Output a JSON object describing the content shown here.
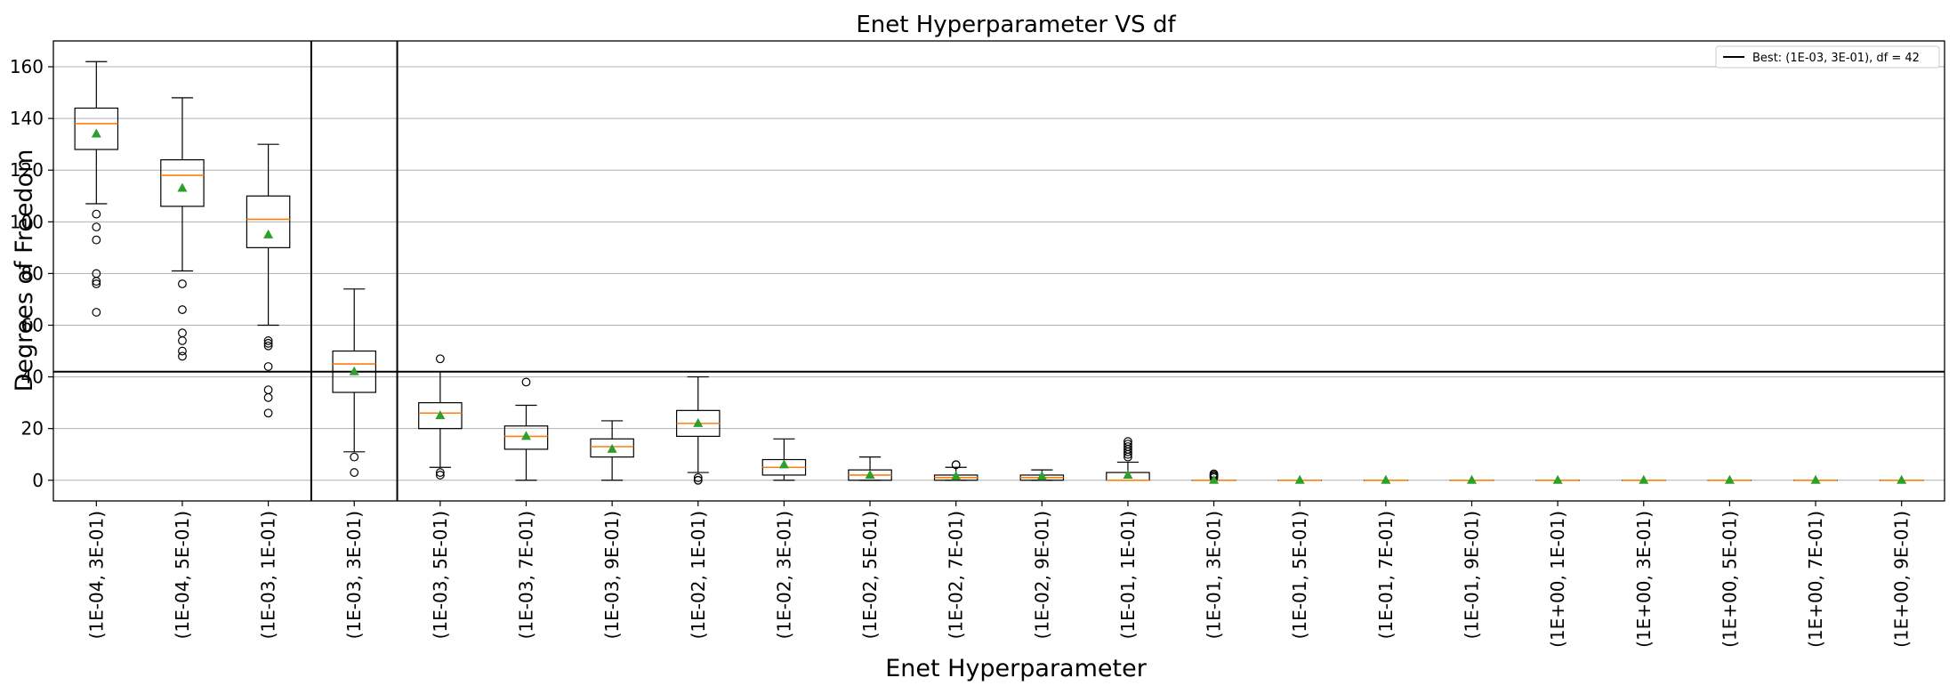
{
  "chart_data": {
    "type": "box",
    "title": "Enet Hyperparameter VS df",
    "xlabel": "Enet Hyperparameter",
    "ylabel": "Degrees of Freedom",
    "ylim": [
      -8,
      170
    ],
    "yticks": [
      0,
      20,
      40,
      60,
      80,
      100,
      120,
      140,
      160
    ],
    "grid": "y",
    "legend": {
      "position": "top-right",
      "entries": [
        "Best: (1E-03, 3E-01), df = 42"
      ]
    },
    "best": {
      "category": "(1E-03, 3E-01)",
      "df": 42
    },
    "categories": [
      "(1E-04, 3E-01)",
      "(1E-04, 5E-01)",
      "(1E-03, 1E-01)",
      "(1E-03, 3E-01)",
      "(1E-03, 5E-01)",
      "(1E-03, 7E-01)",
      "(1E-03, 9E-01)",
      "(1E-02, 1E-01)",
      "(1E-02, 3E-01)",
      "(1E-02, 5E-01)",
      "(1E-02, 7E-01)",
      "(1E-02, 9E-01)",
      "(1E-01, 1E-01)",
      "(1E-01, 3E-01)",
      "(1E-01, 5E-01)",
      "(1E-01, 7E-01)",
      "(1E-01, 9E-01)",
      "(1E+00, 1E-01)",
      "(1E+00, 3E-01)",
      "(1E+00, 5E-01)",
      "(1E+00, 7E-01)",
      "(1E+00, 9E-01)"
    ],
    "boxes": [
      {
        "whislo": 107,
        "q1": 128,
        "med": 138,
        "q3": 144,
        "whishi": 162,
        "mean": 134,
        "fliers": [
          103,
          98,
          93,
          80,
          77,
          76,
          65
        ]
      },
      {
        "whislo": 81,
        "q1": 106,
        "med": 118,
        "q3": 124,
        "whishi": 148,
        "mean": 113,
        "fliers": [
          76,
          66,
          57,
          54,
          50,
          48
        ]
      },
      {
        "whislo": 60,
        "q1": 90,
        "med": 101,
        "q3": 110,
        "whishi": 130,
        "mean": 95,
        "fliers": [
          54,
          53,
          52,
          44,
          35,
          32,
          26
        ]
      },
      {
        "whislo": 11,
        "q1": 34,
        "med": 45,
        "q3": 50,
        "whishi": 74,
        "mean": 42,
        "fliers": [
          9,
          3
        ]
      },
      {
        "whislo": 5,
        "q1": 20,
        "med": 26,
        "q3": 30,
        "whishi": 42,
        "mean": 25,
        "fliers": [
          47,
          3,
          2
        ]
      },
      {
        "whislo": 0,
        "q1": 12,
        "med": 17,
        "q3": 21,
        "whishi": 29,
        "mean": 17,
        "fliers": [
          38
        ]
      },
      {
        "whislo": 0,
        "q1": 9,
        "med": 13,
        "q3": 16,
        "whishi": 23,
        "mean": 12,
        "fliers": []
      },
      {
        "whislo": 3,
        "q1": 17,
        "med": 22,
        "q3": 27,
        "whishi": 40,
        "mean": 22,
        "fliers": [
          1,
          0,
          0
        ]
      },
      {
        "whislo": 0,
        "q1": 2,
        "med": 5,
        "q3": 8,
        "whishi": 16,
        "mean": 6,
        "fliers": []
      },
      {
        "whislo": 0,
        "q1": 0,
        "med": 2,
        "q3": 4,
        "whishi": 9,
        "mean": 2,
        "fliers": []
      },
      {
        "whislo": 0,
        "q1": 0,
        "med": 1,
        "q3": 2,
        "whishi": 5,
        "mean": 1.5,
        "fliers": [
          6,
          6
        ]
      },
      {
        "whislo": 0,
        "q1": 0,
        "med": 1,
        "q3": 2,
        "whishi": 4,
        "mean": 1.5,
        "fliers": []
      },
      {
        "whislo": 0,
        "q1": 0,
        "med": 0,
        "q3": 3,
        "whishi": 7,
        "mean": 2,
        "fliers": [
          9,
          10,
          11,
          12,
          13,
          14,
          15
        ]
      },
      {
        "whislo": 0,
        "q1": 0,
        "med": 0,
        "q3": 0,
        "whishi": 0,
        "mean": 0,
        "fliers": [
          1,
          1.5,
          2,
          2.5
        ]
      },
      {
        "whislo": 0,
        "q1": 0,
        "med": 0,
        "q3": 0,
        "whishi": 0,
        "mean": 0,
        "fliers": []
      },
      {
        "whislo": 0,
        "q1": 0,
        "med": 0,
        "q3": 0,
        "whishi": 0,
        "mean": 0,
        "fliers": []
      },
      {
        "whislo": 0,
        "q1": 0,
        "med": 0,
        "q3": 0,
        "whishi": 0,
        "mean": 0,
        "fliers": []
      },
      {
        "whislo": 0,
        "q1": 0,
        "med": 0,
        "q3": 0,
        "whishi": 0,
        "mean": 0,
        "fliers": []
      },
      {
        "whislo": 0,
        "q1": 0,
        "med": 0,
        "q3": 0,
        "whishi": 0,
        "mean": 0,
        "fliers": []
      },
      {
        "whislo": 0,
        "q1": 0,
        "med": 0,
        "q3": 0,
        "whishi": 0,
        "mean": 0,
        "fliers": []
      },
      {
        "whislo": 0,
        "q1": 0,
        "med": 0,
        "q3": 0,
        "whishi": 0,
        "mean": 0,
        "fliers": []
      },
      {
        "whislo": 0,
        "q1": 0,
        "med": 0,
        "q3": 0,
        "whishi": 0,
        "mean": 0,
        "fliers": []
      }
    ],
    "colors": {
      "box": "#000000",
      "median": "#ff7f0e",
      "mean": "#2ca02c",
      "grid": "#b0b0b0",
      "best_line": "#000000"
    }
  }
}
